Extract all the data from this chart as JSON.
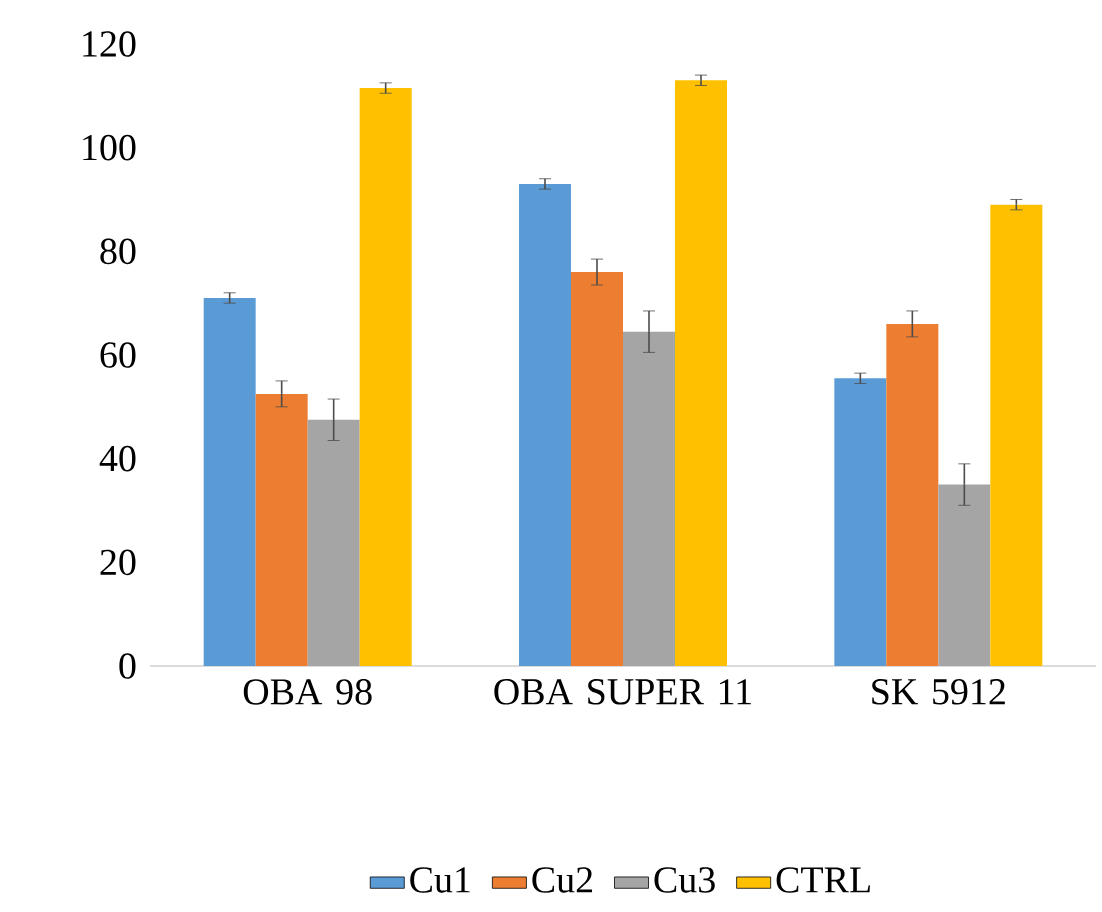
{
  "chart_data": {
    "type": "bar",
    "categories": [
      "OBA 98",
      "OBA SUPER 11",
      "SK 5912"
    ],
    "series": [
      {
        "name": "Cu1",
        "color": "#5b9bd5",
        "values": [
          71,
          93,
          55.5
        ],
        "errors": [
          1,
          1,
          1
        ]
      },
      {
        "name": "Cu2",
        "color": "#ed7d31",
        "values": [
          52.5,
          76,
          66
        ],
        "errors": [
          2.5,
          2.5,
          2.5
        ]
      },
      {
        "name": "Cu3",
        "color": "#a5a5a5",
        "values": [
          47.5,
          64.5,
          35
        ],
        "errors": [
          4,
          4,
          4
        ]
      },
      {
        "name": "CTRL",
        "color": "#ffc000",
        "values": [
          111.5,
          113,
          89
        ],
        "errors": [
          1,
          1,
          1
        ]
      }
    ],
    "ylim": [
      0,
      120
    ],
    "yticks": [
      0,
      20,
      40,
      60,
      80,
      100,
      120
    ],
    "legend": "bottom"
  }
}
